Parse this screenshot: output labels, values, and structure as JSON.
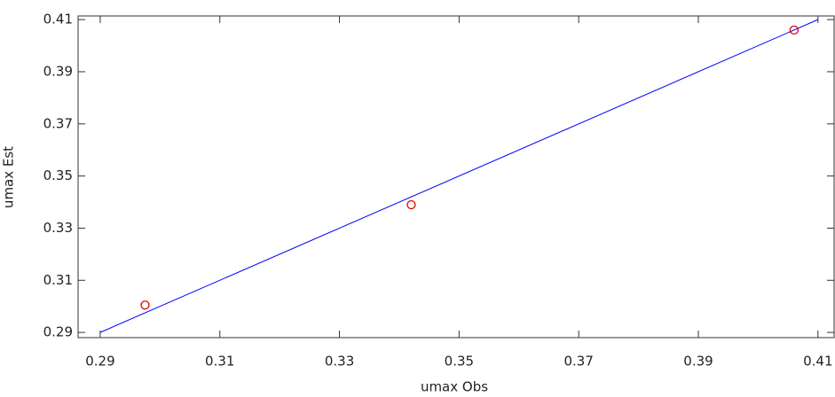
{
  "chart_data": {
    "type": "scatter",
    "x_label": "umax Obs",
    "y_label": "umax Est",
    "series": [
      {
        "x": [
          0.2975,
          0.342,
          0.406
        ],
        "values": [
          0.3005,
          0.339,
          0.406
        ],
        "color": "#e00000"
      }
    ],
    "reference_line": {
      "x": [
        0.29,
        0.41
      ],
      "y": [
        0.29,
        0.41
      ],
      "color": "#0000ff"
    },
    "xlim": [
      0.2863,
      0.4127
    ],
    "ylim": [
      0.288,
      0.4114
    ],
    "xticks": [
      0.29,
      0.31,
      0.33,
      0.35,
      0.37,
      0.39,
      0.41
    ],
    "yticks": [
      0.29,
      0.31,
      0.33,
      0.35,
      0.37,
      0.39,
      0.41
    ]
  }
}
